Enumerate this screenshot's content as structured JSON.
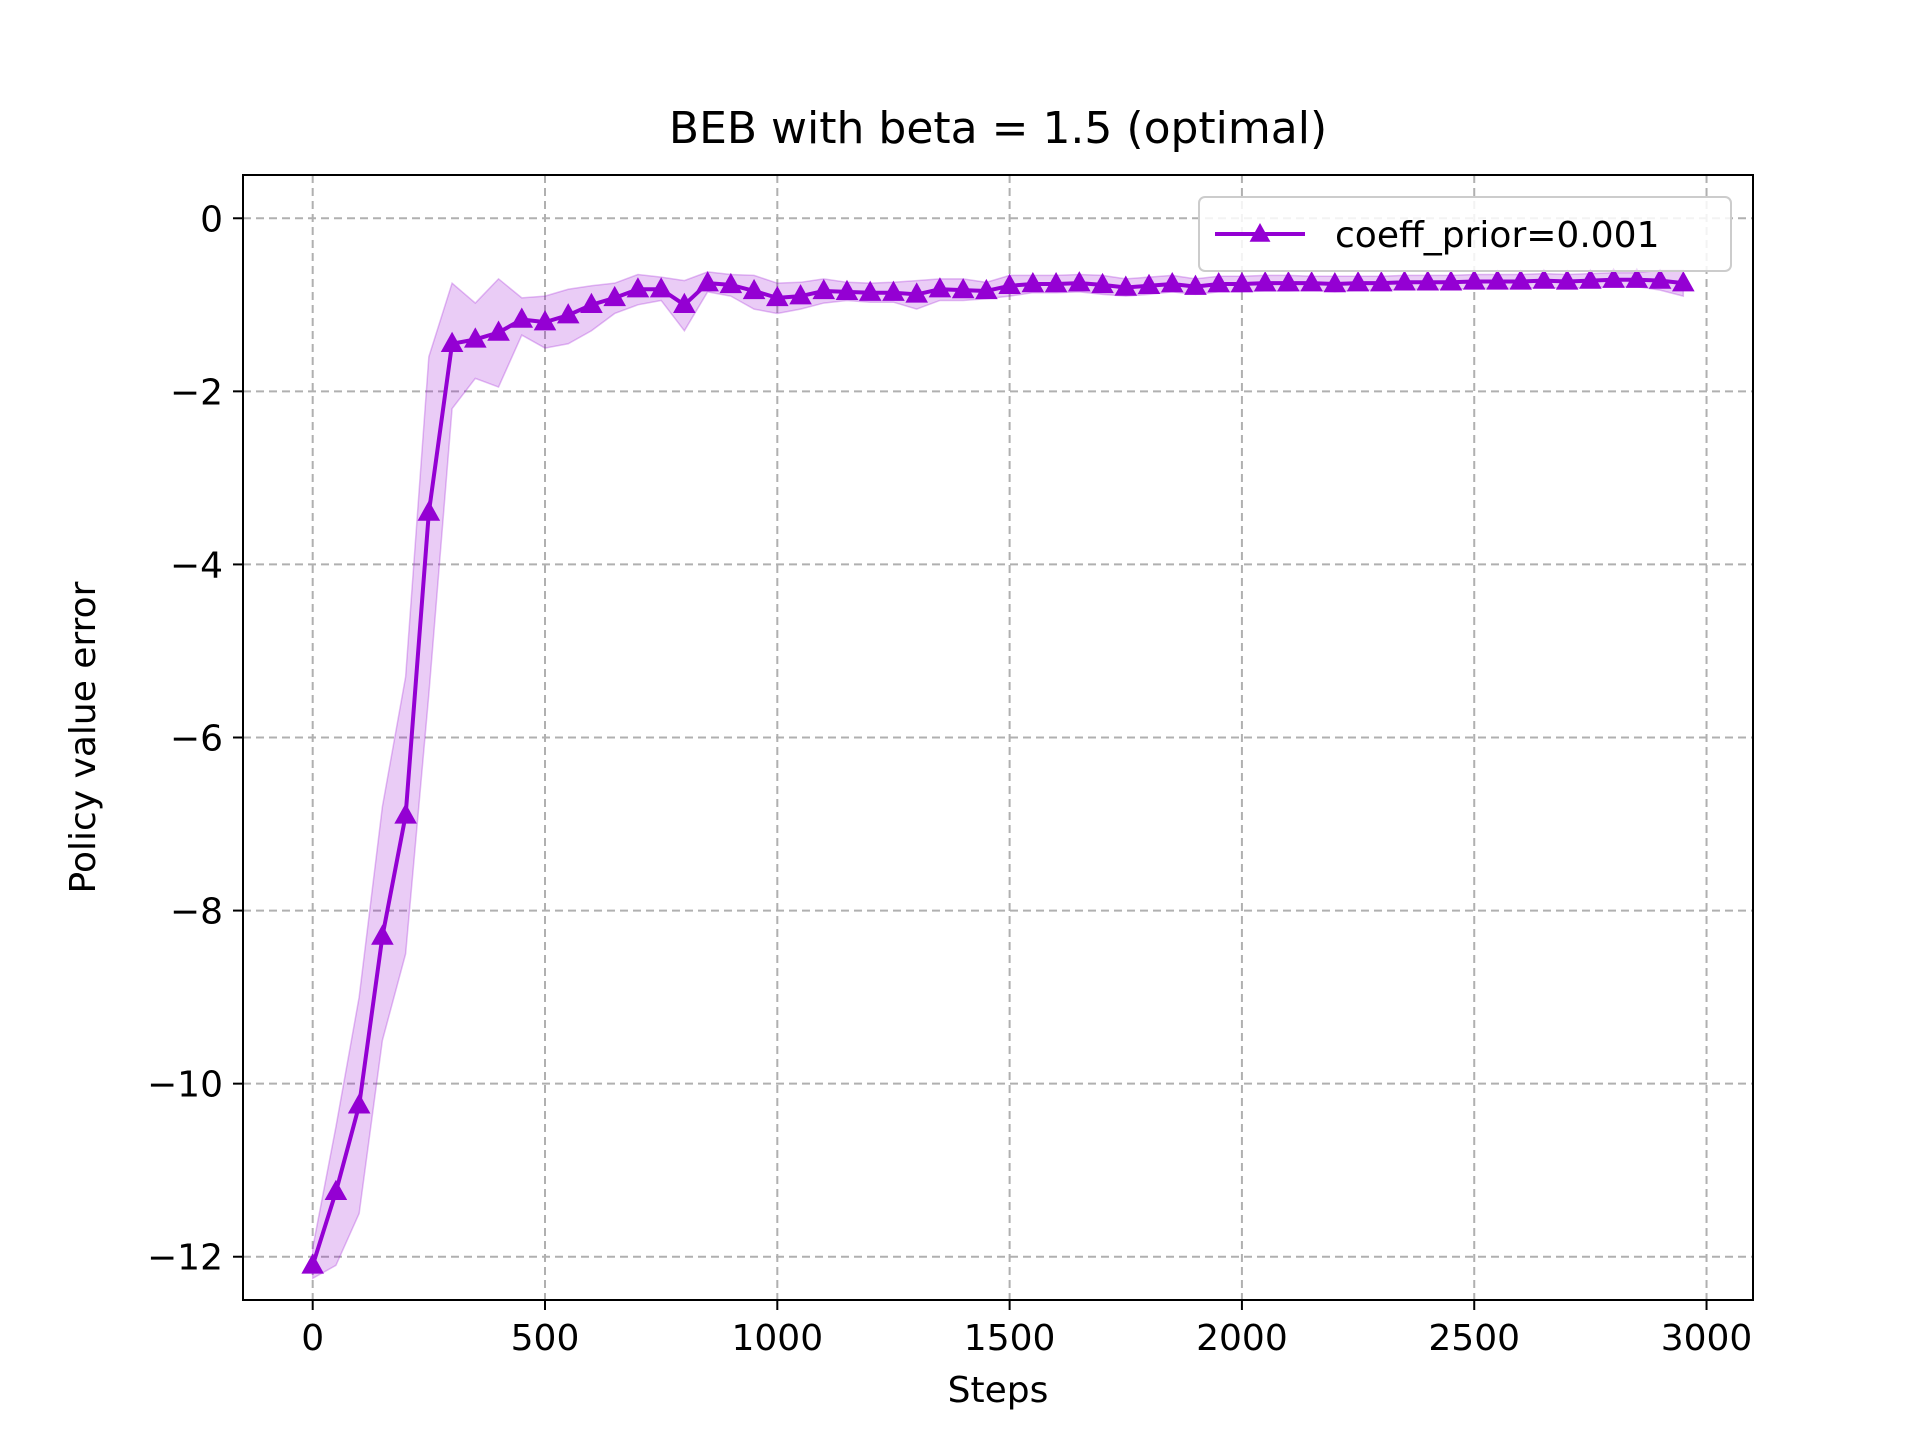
{
  "chart_data": {
    "type": "line",
    "title": "BEB with beta = 1.5 (optimal)",
    "xlabel": "Steps",
    "ylabel": "Policy value error",
    "xlim": [
      -150,
      3100
    ],
    "ylim": [
      -12.5,
      0.5
    ],
    "xticks": [
      0,
      500,
      1000,
      1500,
      2000,
      2500,
      3000
    ],
    "yticks": [
      0,
      -2,
      -4,
      -6,
      -8,
      -10,
      -12
    ],
    "xtick_labels": [
      "0",
      "500",
      "1000",
      "1500",
      "2000",
      "2500",
      "3000"
    ],
    "ytick_labels": [
      "0",
      "−2",
      "−4",
      "−6",
      "−8",
      "−10",
      "−12"
    ],
    "grid": true,
    "legend_position": "upper right",
    "series": [
      {
        "name": "coeff_prior=0.001",
        "color": "#9400D3",
        "marker": "triangle-up",
        "x": [
          0,
          50,
          100,
          150,
          200,
          250,
          300,
          350,
          400,
          450,
          500,
          550,
          600,
          650,
          700,
          750,
          800,
          850,
          900,
          950,
          1000,
          1050,
          1100,
          1150,
          1200,
          1250,
          1300,
          1350,
          1400,
          1450,
          1500,
          1550,
          1600,
          1650,
          1700,
          1750,
          1800,
          1850,
          1900,
          1950,
          2000,
          2050,
          2100,
          2150,
          2200,
          2250,
          2300,
          2350,
          2400,
          2450,
          2500,
          2550,
          2600,
          2650,
          2700,
          2750,
          2800,
          2850,
          2900,
          2950
        ],
        "y": [
          -12.1,
          -11.25,
          -10.25,
          -8.3,
          -6.9,
          -3.4,
          -1.45,
          -1.4,
          -1.32,
          -1.17,
          -1.2,
          -1.12,
          -1.0,
          -0.92,
          -0.82,
          -0.82,
          -1.0,
          -0.75,
          -0.77,
          -0.84,
          -0.92,
          -0.9,
          -0.84,
          -0.85,
          -0.86,
          -0.86,
          -0.88,
          -0.82,
          -0.83,
          -0.84,
          -0.78,
          -0.76,
          -0.76,
          -0.75,
          -0.77,
          -0.8,
          -0.78,
          -0.76,
          -0.79,
          -0.76,
          -0.76,
          -0.75,
          -0.75,
          -0.75,
          -0.76,
          -0.75,
          -0.75,
          -0.74,
          -0.74,
          -0.74,
          -0.73,
          -0.73,
          -0.73,
          -0.72,
          -0.73,
          -0.72,
          -0.71,
          -0.71,
          -0.72,
          -0.75
        ],
        "lower": [
          -12.25,
          -12.1,
          -11.5,
          -9.5,
          -8.5,
          -5.5,
          -2.2,
          -1.85,
          -1.95,
          -1.35,
          -1.5,
          -1.45,
          -1.3,
          -1.1,
          -1.0,
          -0.95,
          -1.3,
          -0.85,
          -0.9,
          -1.05,
          -1.1,
          -1.05,
          -0.98,
          -0.95,
          -0.97,
          -0.97,
          -1.05,
          -0.95,
          -0.95,
          -0.93,
          -0.9,
          -0.86,
          -0.86,
          -0.85,
          -0.88,
          -0.9,
          -0.88,
          -0.85,
          -0.88,
          -0.85,
          -0.85,
          -0.84,
          -0.84,
          -0.83,
          -0.85,
          -0.83,
          -0.83,
          -0.82,
          -0.82,
          -0.82,
          -0.81,
          -0.81,
          -0.81,
          -0.8,
          -0.81,
          -0.8,
          -0.79,
          -0.79,
          -0.83,
          -0.9
        ],
        "upper": [
          -11.9,
          -10.5,
          -9.0,
          -6.8,
          -5.3,
          -1.6,
          -0.75,
          -0.98,
          -0.7,
          -0.92,
          -0.9,
          -0.82,
          -0.78,
          -0.75,
          -0.65,
          -0.68,
          -0.72,
          -0.62,
          -0.65,
          -0.66,
          -0.75,
          -0.74,
          -0.7,
          -0.74,
          -0.75,
          -0.74,
          -0.72,
          -0.7,
          -0.7,
          -0.74,
          -0.66,
          -0.66,
          -0.66,
          -0.65,
          -0.66,
          -0.7,
          -0.68,
          -0.66,
          -0.7,
          -0.67,
          -0.67,
          -0.66,
          -0.66,
          -0.67,
          -0.67,
          -0.67,
          -0.67,
          -0.66,
          -0.66,
          -0.66,
          -0.65,
          -0.65,
          -0.65,
          -0.64,
          -0.65,
          -0.64,
          -0.63,
          -0.63,
          -0.6,
          -0.6
        ]
      }
    ]
  }
}
